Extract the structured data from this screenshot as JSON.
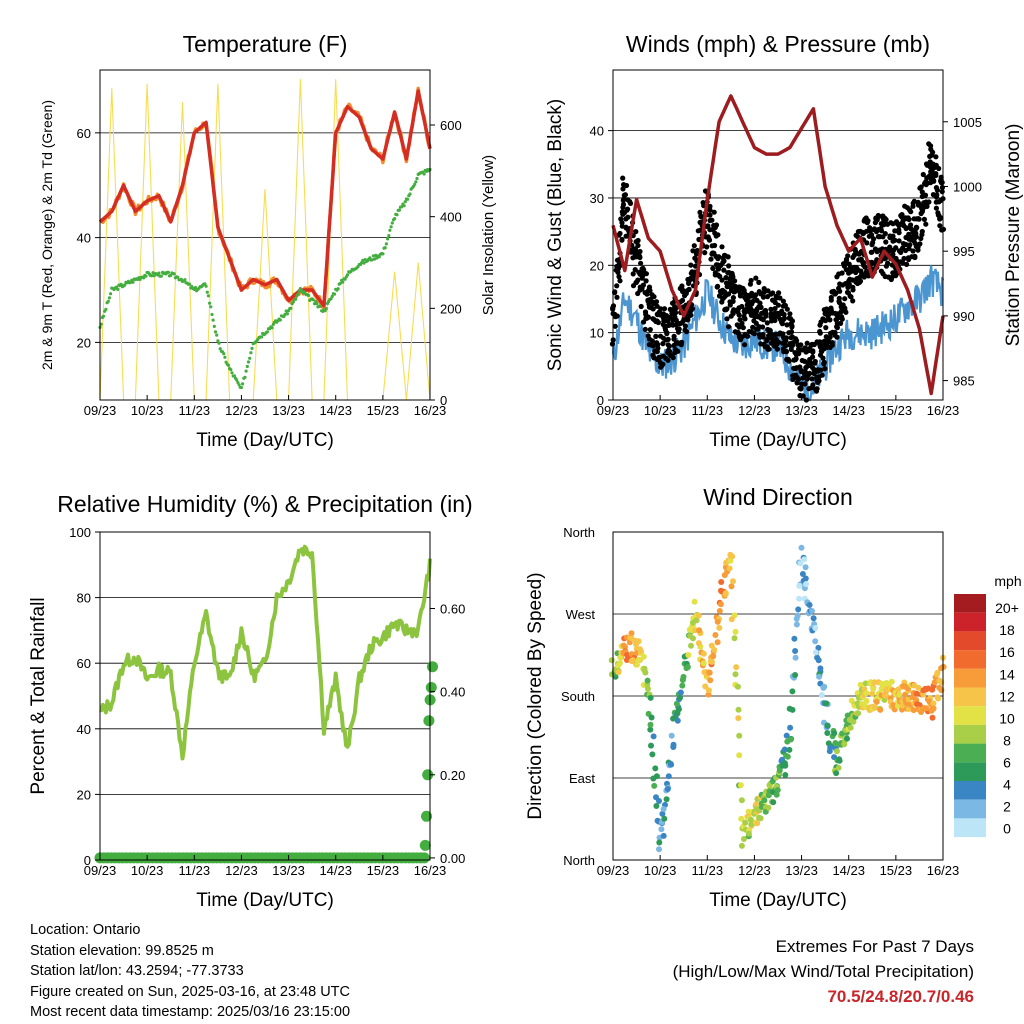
{
  "colors": {
    "temp": "#d42d24",
    "temp9m": "#f48b2c",
    "dew": "#44ad3f",
    "solar": "#f8dc52",
    "wind": "#4b95d1",
    "gust": "#000000",
    "pressure": "#9c1c20",
    "rh": "#8dc43f",
    "precip": "#44ad3f",
    "extremes": "#c8262b"
  },
  "x_ticks": [
    "09/23",
    "10/23",
    "11/23",
    "12/23",
    "13/23",
    "14/23",
    "15/23",
    "16/23"
  ],
  "x_label": "Time (Day/UTC)",
  "info": {
    "location": "Location: Ontario",
    "elevation": "Station elevation: 99.8525 m",
    "latlon": "Station lat/lon: 43.2594; -77.3733",
    "created": "Figure created on Sun, 2025-03-16, at 23:48 UTC",
    "recent": "Most recent data timestamp: 2025/03/16 23:15:00"
  },
  "extremes": {
    "line1": "Extremes For Past 7 Days",
    "line2": "(High/Low/Max Wind/Total Precipitation)",
    "values": "70.5/24.8/20.7/0.46"
  },
  "chart_data": [
    {
      "type": "line",
      "title": "Temperature (F)",
      "xlabel": "Time (Day/UTC)",
      "ylabel": "2m & 9m T (Red, Orange) & 2m Td (Green)",
      "y2label": "Solar Insolation (Yellow)",
      "ylim": [
        9,
        72
      ],
      "yticks": [
        20,
        40,
        60
      ],
      "y2lim": [
        0,
        720
      ],
      "y2ticks": [
        0,
        200,
        400,
        600
      ],
      "x": [
        9,
        9.25,
        9.5,
        9.75,
        10,
        10.25,
        10.5,
        10.75,
        11,
        11.25,
        11.5,
        11.75,
        12,
        12.25,
        12.5,
        12.75,
        13,
        13.25,
        13.5,
        13.75,
        14,
        14.25,
        14.5,
        14.75,
        15,
        15.25,
        15.5,
        15.75,
        16
      ],
      "series": [
        {
          "axis": "left",
          "style": "line",
          "values": [
            43,
            45,
            50,
            45,
            47,
            48,
            43,
            50,
            60,
            62,
            42,
            36,
            30,
            32,
            31,
            32,
            28,
            30,
            30,
            27,
            60,
            65,
            63,
            57,
            55,
            64,
            55,
            68,
            57
          ]
        },
        {
          "axis": "left",
          "style": "dots",
          "values": [
            23,
            30,
            31,
            32,
            33,
            33,
            33,
            32,
            30,
            31,
            20,
            15,
            11,
            20,
            22,
            24,
            26,
            30,
            28,
            26,
            30,
            33,
            35,
            36,
            37,
            44,
            47,
            52,
            53
          ]
        },
        {
          "axis": "right",
          "style": "line",
          "values": [
            0,
            680,
            0,
            0,
            690,
            0,
            0,
            650,
            0,
            0,
            690,
            0,
            0,
            0,
            460,
            0,
            0,
            700,
            0,
            0,
            700,
            0,
            0,
            0,
            0,
            280,
            0,
            300,
            0
          ]
        }
      ]
    },
    {
      "type": "line",
      "title": "Winds (mph) & Pressure (mb)",
      "xlabel": "Time (Day/UTC)",
      "ylabel": "Sonic Wind & Gust (Blue, Black)",
      "y2label": "Station Pressure (Maroon)",
      "ylim": [
        0,
        49
      ],
      "yticks": [
        0,
        10,
        20,
        30,
        40
      ],
      "y2lim": [
        983.5,
        1009
      ],
      "y2ticks": [
        985,
        990,
        995,
        1000,
        1005
      ],
      "x": [
        9,
        9.25,
        9.5,
        9.75,
        10,
        10.25,
        10.5,
        10.75,
        11,
        11.25,
        11.5,
        11.75,
        12,
        12.25,
        12.5,
        12.75,
        13,
        13.25,
        13.5,
        13.75,
        14,
        14.25,
        14.5,
        14.75,
        15,
        15.25,
        15.5,
        15.75,
        16
      ],
      "series": [
        {
          "axis": "left",
          "style": "line",
          "values": [
            6,
            15,
            12,
            7,
            5,
            6,
            8,
            12,
            16,
            12,
            9,
            8,
            9,
            8,
            8,
            5,
            2,
            2,
            5,
            8,
            10,
            10,
            10,
            11,
            12,
            14,
            15,
            18,
            16
          ]
        },
        {
          "axis": "left",
          "style": "dots",
          "values": [
            10,
            30,
            20,
            13,
            9,
            10,
            13,
            20,
            28,
            20,
            15,
            12,
            14,
            12,
            12,
            9,
            4,
            4,
            9,
            14,
            18,
            22,
            23,
            23,
            22,
            25,
            26,
            35,
            28
          ]
        },
        {
          "axis": "right",
          "style": "line",
          "values": [
            997,
            993.5,
            999,
            996,
            995,
            992,
            990,
            992,
            999,
            1005,
            1007,
            1005,
            1003,
            1002.5,
            1002.5,
            1003,
            1004.5,
            1006,
            1000,
            997,
            995,
            996,
            993,
            995,
            994,
            992,
            989,
            984,
            990
          ]
        }
      ]
    },
    {
      "type": "line",
      "title": "Relative Humidity (%) & Precipitation (in)",
      "xlabel": "Time (Day/UTC)",
      "ylabel": "Percent & Total Rainfall",
      "ylim": [
        0,
        100
      ],
      "yticks": [
        0,
        20,
        40,
        60,
        80,
        100
      ],
      "y2lim": [
        -0.005,
        0.784
      ],
      "y2ticks": [
        0.0,
        0.2,
        0.4,
        0.6
      ],
      "x": [
        9,
        9.25,
        9.5,
        9.75,
        10,
        10.25,
        10.5,
        10.75,
        11,
        11.25,
        11.5,
        11.75,
        12,
        12.25,
        12.5,
        12.75,
        13,
        13.25,
        13.5,
        13.75,
        14,
        14.25,
        14.5,
        14.75,
        15,
        15.25,
        15.5,
        15.75,
        16
      ],
      "series": [
        {
          "axis": "left",
          "style": "line",
          "values": [
            45,
            48,
            60,
            62,
            55,
            58,
            57,
            32,
            60,
            75,
            57,
            55,
            70,
            56,
            60,
            80,
            85,
            95,
            94,
            40,
            55,
            33,
            55,
            65,
            68,
            72,
            70,
            70,
            90
          ]
        },
        {
          "axis": "right",
          "style": "dots",
          "values": [
            0,
            0,
            0,
            0,
            0,
            0,
            0,
            0,
            0,
            0,
            0,
            0,
            0,
            0,
            0,
            0,
            0,
            0,
            0,
            0,
            0,
            0,
            0,
            0,
            0,
            0,
            0,
            0,
            0.46
          ]
        }
      ]
    },
    {
      "type": "scatter",
      "title": "Wind Direction",
      "xlabel": "Time (Day/UTC)",
      "ylabel": "Direction (Colored By Speed)",
      "ylim": [
        0,
        4
      ],
      "yticks": [
        "North",
        "East",
        "South",
        "West",
        "North"
      ],
      "legend_title": "mph",
      "legend_labels": [
        "20+",
        "18",
        "16",
        "14",
        "12",
        "10",
        "8",
        "6",
        "4",
        "2",
        "0"
      ],
      "legend_colors": [
        "#a51c20",
        "#cc2229",
        "#e34a2c",
        "#f16b2f",
        "#f79c39",
        "#f7c44a",
        "#e2e146",
        "#a8cf47",
        "#4cae52",
        "#2d9a5a",
        "#3a86c4",
        "#7cb8e4",
        "#bde5f8"
      ],
      "x": [
        9,
        9.25,
        9.5,
        9.75,
        10,
        10.25,
        10.5,
        10.75,
        11,
        11.25,
        11.5,
        11.75,
        12,
        12.25,
        12.5,
        12.75,
        13,
        13.25,
        13.5,
        13.75,
        14,
        14.25,
        14.5,
        14.75,
        15,
        15.25,
        15.5,
        15.75,
        16
      ],
      "series": [
        {
          "values": [
            2.3,
            2.6,
            2.6,
            2.1,
            0.2,
            1.4,
            2.3,
            3.0,
            2.1,
            3.0,
            3.8,
            0.3,
            0.6,
            0.7,
            0.9,
            1.5,
            3.7,
            2.8,
            1.8,
            1.2,
            1.7,
            2.0,
            2.0,
            2.0,
            2.0,
            2.0,
            2.0,
            1.9,
            2.3
          ],
          "speeds": [
            6,
            14,
            12,
            7,
            3,
            4,
            6,
            10,
            12,
            14,
            12,
            8,
            10,
            8,
            6,
            4,
            2,
            2,
            3,
            6,
            8,
            10,
            11,
            11,
            12,
            12,
            13,
            14,
            12
          ]
        }
      ]
    }
  ]
}
